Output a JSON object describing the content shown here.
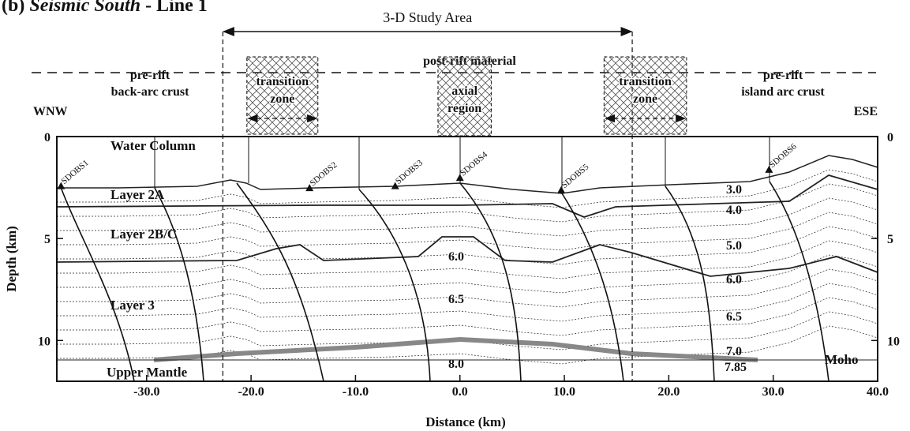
{
  "chart_data": {
    "type": "profile",
    "title_parts": [
      "(b) ",
      "Seismic South",
      " - Line 1"
    ],
    "x_label": "Distance (km)",
    "y_label": "Depth (km)",
    "xlim": [
      -38.6,
      40.0
    ],
    "ylim": [
      0,
      12
    ],
    "xticks": [
      {
        "value": -30,
        "label": "-30.0"
      },
      {
        "value": -20,
        "label": "-20.0"
      },
      {
        "value": -10,
        "label": "-10.0"
      },
      {
        "value": 0,
        "label": "0.0"
      },
      {
        "value": 10,
        "label": "10.0"
      },
      {
        "value": 20,
        "label": "20.0"
      },
      {
        "value": 30,
        "label": "30.0"
      },
      {
        "value": 40,
        "label": "40.0"
      }
    ],
    "yticks": [
      0,
      5,
      10
    ],
    "study_area": {
      "label": "3-D Study Area",
      "x": [
        -22.7,
        16.5
      ]
    },
    "header": {
      "post_rift": "post-rift material",
      "pre_rift_left": [
        "pre-rift",
        "back-arc crust"
      ],
      "pre_rift_right": [
        "pre-rift",
        "island arc crust"
      ],
      "left_dir": "WNW",
      "right_dir": "ESE"
    },
    "zones": [
      {
        "label": [
          "transition",
          "zone"
        ],
        "x": [
          -20.4,
          -13.6
        ]
      },
      {
        "label": [
          "axial",
          "region"
        ],
        "x": [
          -2.1,
          3.0
        ]
      },
      {
        "label": [
          "transition",
          "zone"
        ],
        "x": [
          13.8,
          21.7
        ]
      }
    ],
    "layers": [
      "Water Column",
      "Layer 2A",
      "Layer 2B/C",
      "Layer 3",
      "Upper Mantle",
      "Moho"
    ],
    "velocities": [
      "3.0",
      "4.0",
      "5.0",
      "6.0",
      "6.5",
      "7.0",
      "7.85",
      "6.0",
      "6.5",
      "8.0"
    ],
    "stations": [
      {
        "name": "SDOBS1",
        "x": -38.2,
        "depth": 2.5
      },
      {
        "name": "SDOBS2",
        "x": -14.4,
        "depth": 2.6
      },
      {
        "name": "SDOBS3",
        "x": -6.2,
        "depth": 2.5
      },
      {
        "name": "SDOBS4",
        "x": 0,
        "depth": 2.1
      },
      {
        "name": "SDOBS5",
        "x": 9.7,
        "depth": 2.7
      },
      {
        "name": "SDOBS6",
        "x": 29.6,
        "depth": 1.7
      }
    ]
  }
}
